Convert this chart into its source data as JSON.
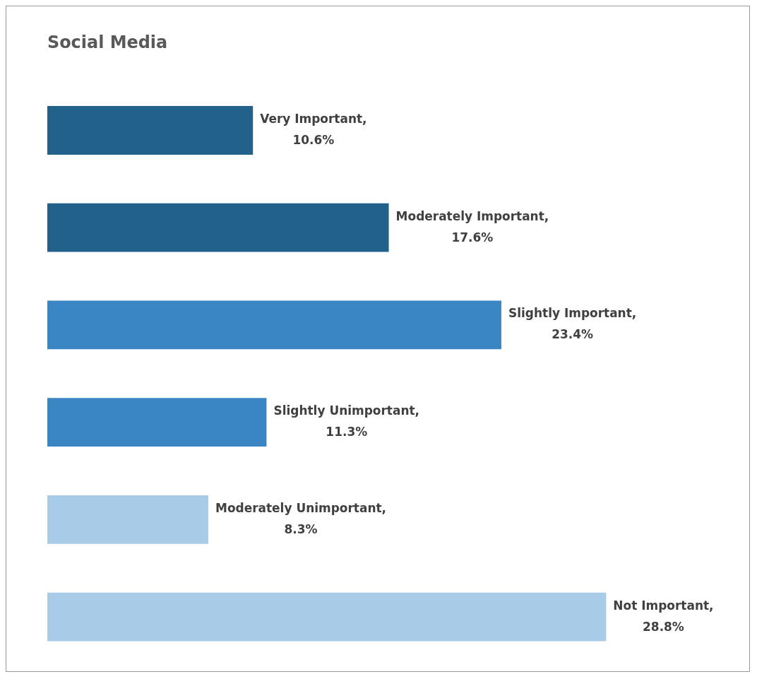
{
  "chart_data": {
    "type": "bar",
    "orientation": "horizontal",
    "title": "Social Media",
    "categories": [
      null,
      null,
      null,
      null,
      null,
      null
    ],
    "values": [
      10.6,
      17.6,
      23.4,
      11.3,
      8.3,
      28.8
    ],
    "colors": [
      "#22618c",
      "#22618c",
      "#3a86c4",
      "#3a86c4",
      "#a8cce8",
      "#a8cce8"
    ],
    "value_labels": [
      "Very Important, 10.6%",
      "Moderately Important, 17.6%",
      "Slightly Important, 23.4%",
      "Slightly Unimportant, 11.3%",
      "Moderately Unimportant, 8.3%",
      "Not Important, 28.8%"
    ],
    "legend": false
  }
}
